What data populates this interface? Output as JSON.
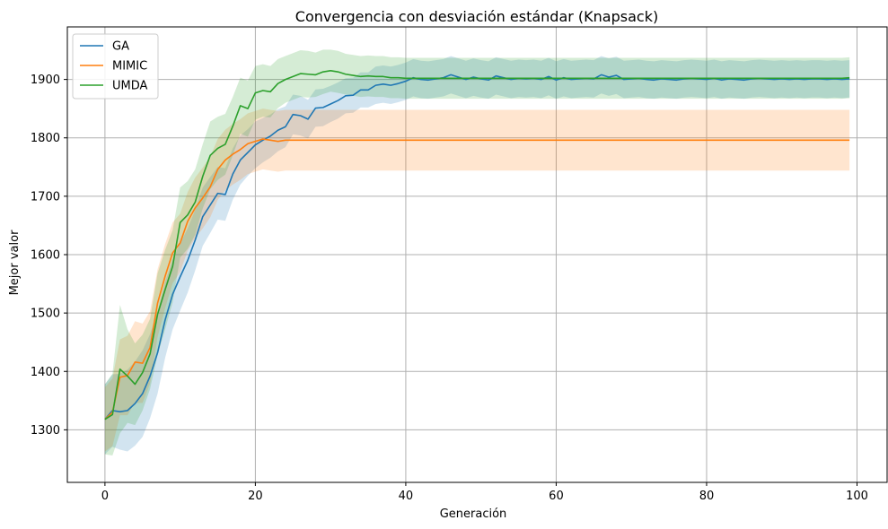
{
  "chart_data": {
    "type": "line",
    "title": "Convergencia con desviación estándar (Knapsack)",
    "xlabel": "Generación",
    "ylabel": "Mejor valor",
    "xlim": [
      -5,
      104
    ],
    "ylim": [
      1210,
      1990
    ],
    "xticks": [
      0,
      20,
      40,
      60,
      80,
      100
    ],
    "yticks": [
      1300,
      1400,
      1500,
      1600,
      1700,
      1800,
      1900
    ],
    "grid": true,
    "legend_position": "top-left",
    "x": [
      0,
      1,
      2,
      3,
      4,
      5,
      6,
      7,
      8,
      9,
      10,
      11,
      12,
      13,
      14,
      15,
      16,
      17,
      18,
      19,
      20,
      21,
      22,
      23,
      24,
      25,
      26,
      27,
      28,
      29,
      30,
      31,
      32,
      33,
      34,
      35,
      36,
      37,
      38,
      39,
      40,
      41,
      42,
      43,
      44,
      45,
      46,
      47,
      48,
      49,
      50,
      51,
      52,
      53,
      54,
      55,
      56,
      57,
      58,
      59,
      60,
      61,
      62,
      63,
      64,
      65,
      66,
      67,
      68,
      69,
      70,
      71,
      72,
      73,
      74,
      75,
      76,
      77,
      78,
      79,
      80,
      81,
      82,
      83,
      84,
      85,
      86,
      87,
      88,
      89,
      90,
      91,
      92,
      93,
      94,
      95,
      96,
      97,
      98,
      99
    ],
    "series": [
      {
        "name": "GA",
        "color": "#1f77b4",
        "values": [
          1318,
          1333,
          1331,
          1333,
          1345,
          1362,
          1392,
          1432,
          1488,
          1532,
          1562,
          1590,
          1625,
          1665,
          1685,
          1705,
          1703,
          1738,
          1762,
          1775,
          1788,
          1796,
          1803,
          1813,
          1819,
          1840,
          1838,
          1832,
          1851,
          1852,
          1858,
          1864,
          1872,
          1873,
          1882,
          1882,
          1890,
          1892,
          1890,
          1893,
          1897,
          1903,
          1900,
          1899,
          1901,
          1903,
          1908,
          1904,
          1900,
          1904,
          1901,
          1899,
          1906,
          1903,
          1900,
          1902,
          1901,
          1902,
          1900,
          1905,
          1899,
          1903,
          1900,
          1901,
          1902,
          1901,
          1908,
          1904,
          1907,
          1900,
          1901,
          1902,
          1900,
          1899,
          1901,
          1900,
          1899,
          1901,
          1902,
          1901,
          1900,
          1902,
          1899,
          1901,
          1900,
          1899,
          1901,
          1902,
          1901,
          1900,
          1901,
          1900,
          1901,
          1900,
          1901,
          1901,
          1900,
          1901,
          1900,
          1901
        ],
        "std": [
          60,
          62,
          65,
          70,
          72,
          74,
          72,
          70,
          65,
          60,
          58,
          55,
          52,
          50,
          48,
          45,
          45,
          44,
          42,
          40,
          40,
          38,
          37,
          36,
          35,
          34,
          34,
          33,
          32,
          32,
          31,
          31,
          30,
          30,
          30,
          30,
          32,
          32,
          32,
          32,
          32,
          32,
          32,
          32,
          32,
          32,
          32,
          32,
          32,
          32,
          32,
          32,
          32,
          32,
          32,
          32,
          32,
          32,
          32,
          32,
          32,
          32,
          32,
          32,
          32,
          32,
          32,
          32,
          32,
          32,
          32,
          32,
          32,
          32,
          32,
          32,
          32,
          32,
          32,
          32,
          32,
          32,
          32,
          32,
          32,
          32,
          32,
          32,
          32,
          32,
          32,
          32,
          32,
          32,
          32,
          32,
          32,
          32,
          32,
          32
        ]
      },
      {
        "name": "MIMIC",
        "color": "#ff7f0e",
        "values": [
          1318,
          1330,
          1390,
          1393,
          1416,
          1414,
          1441,
          1517,
          1563,
          1603,
          1620,
          1657,
          1680,
          1697,
          1716,
          1746,
          1762,
          1772,
          1780,
          1790,
          1794,
          1798,
          1796,
          1794,
          1796,
          1796,
          1796,
          1796,
          1796,
          1796,
          1796,
          1796,
          1796,
          1796,
          1796,
          1796,
          1796,
          1796,
          1796,
          1796,
          1796,
          1796,
          1796,
          1796,
          1796,
          1796,
          1796,
          1796,
          1796,
          1796,
          1796,
          1796,
          1796,
          1796,
          1796,
          1796,
          1796,
          1796,
          1796,
          1796,
          1796,
          1796,
          1796,
          1796,
          1796,
          1796,
          1796,
          1796,
          1796,
          1796,
          1796,
          1796,
          1796,
          1796,
          1796,
          1796,
          1796,
          1796,
          1796,
          1796,
          1796,
          1796,
          1796,
          1796,
          1796,
          1796,
          1796,
          1796,
          1796,
          1796,
          1796,
          1796,
          1796,
          1796,
          1796,
          1796,
          1796,
          1796,
          1796,
          1796
        ],
        "std": [
          55,
          58,
          65,
          68,
          70,
          68,
          62,
          58,
          55,
          52,
          50,
          50,
          52,
          52,
          52,
          52,
          52,
          52,
          52,
          52,
          52,
          52,
          52,
          52,
          52,
          52,
          52,
          52,
          52,
          52,
          52,
          52,
          52,
          52,
          52,
          52,
          52,
          52,
          52,
          52,
          52,
          52,
          52,
          52,
          52,
          52,
          52,
          52,
          52,
          52,
          52,
          52,
          52,
          52,
          52,
          52,
          52,
          52,
          52,
          52,
          52,
          52,
          52,
          52,
          52,
          52,
          52,
          52,
          52,
          52,
          52,
          52,
          52,
          52,
          52,
          52,
          52,
          52,
          52,
          52,
          52,
          52,
          52,
          52,
          52,
          52,
          52,
          52,
          52,
          52,
          52,
          52,
          52,
          52,
          52,
          52,
          52,
          52,
          52,
          52
        ]
      },
      {
        "name": "UMDA",
        "color": "#2ca02c",
        "values": [
          1318,
          1326,
          1404,
          1392,
          1378,
          1398,
          1430,
          1498,
          1540,
          1580,
          1655,
          1668,
          1690,
          1734,
          1770,
          1782,
          1789,
          1820,
          1855,
          1850,
          1877,
          1881,
          1879,
          1893,
          1900,
          1905,
          1910,
          1909,
          1908,
          1913,
          1915,
          1913,
          1909,
          1907,
          1905,
          1906,
          1905,
          1905,
          1903,
          1903,
          1902,
          1902,
          1902,
          1902,
          1902,
          1902,
          1902,
          1902,
          1902,
          1902,
          1902,
          1902,
          1902,
          1902,
          1902,
          1902,
          1902,
          1902,
          1902,
          1902,
          1902,
          1902,
          1902,
          1902,
          1902,
          1902,
          1902,
          1902,
          1902,
          1902,
          1902,
          1902,
          1902,
          1902,
          1902,
          1902,
          1902,
          1902,
          1902,
          1902,
          1902,
          1902,
          1902,
          1902,
          1902,
          1902,
          1902,
          1902,
          1902,
          1902,
          1902,
          1902,
          1902,
          1902,
          1902,
          1902,
          1902,
          1902,
          1902,
          1903
        ],
        "std": [
          60,
          70,
          110,
          80,
          70,
          65,
          60,
          70,
          68,
          62,
          60,
          58,
          56,
          55,
          58,
          54,
          52,
          50,
          48,
          48,
          46,
          45,
          44,
          42,
          40,
          40,
          40,
          40,
          38,
          38,
          36,
          36,
          35,
          35,
          35,
          35,
          35,
          35,
          35,
          35,
          35,
          35,
          35,
          35,
          35,
          35,
          35,
          35,
          35,
          35,
          35,
          35,
          35,
          35,
          35,
          35,
          35,
          35,
          35,
          35,
          35,
          35,
          35,
          35,
          35,
          35,
          35,
          35,
          35,
          35,
          35,
          35,
          35,
          35,
          35,
          35,
          35,
          35,
          35,
          35,
          35,
          35,
          35,
          35,
          35,
          35,
          35,
          35,
          35,
          35,
          35,
          35,
          35,
          35,
          35,
          35,
          35,
          35,
          35,
          35
        ]
      }
    ]
  }
}
